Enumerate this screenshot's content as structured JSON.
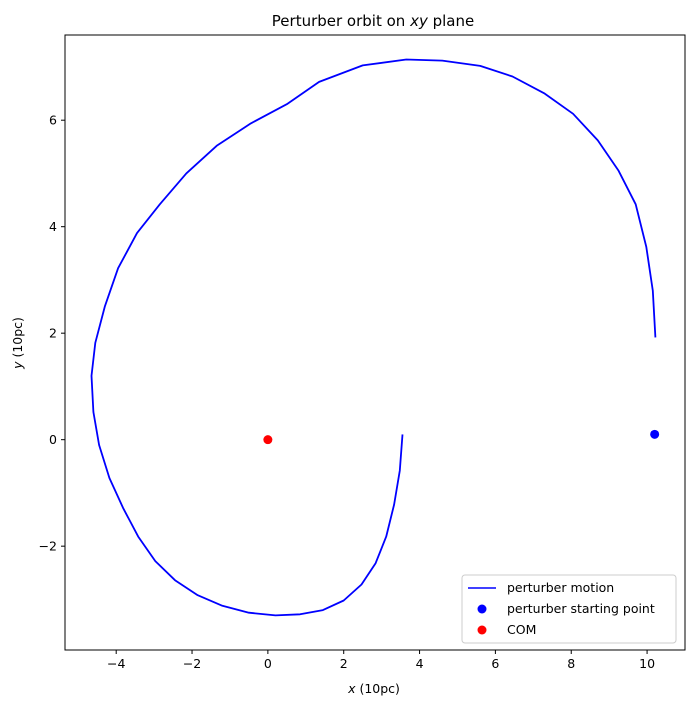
{
  "chart_data": {
    "type": "line",
    "title_prefix": "Perturber orbit on ",
    "title_math": "xy",
    "title_suffix": " plane",
    "xlabel_var": "x",
    "xlabel_unit": " (10pc)",
    "ylabel_var": "y",
    "ylabel_unit": " (10pc)",
    "xlim": [
      -5.35,
      11.0
    ],
    "ylim": [
      -3.95,
      7.6
    ],
    "xticks": [
      -4,
      -2,
      0,
      2,
      4,
      6,
      8,
      10
    ],
    "yticks": [
      -2,
      0,
      2,
      4,
      6
    ],
    "grid": false,
    "legend_location": "lower right",
    "series": [
      {
        "name": "perturber motion",
        "kind": "line",
        "color": "#0000ff",
        "x": [
          3.55,
          3.48,
          3.33,
          3.12,
          2.84,
          2.47,
          2.0,
          1.45,
          0.85,
          0.2,
          -0.5,
          -1.2,
          -1.85,
          -2.45,
          -2.97,
          -3.42,
          -3.82,
          -4.18,
          -4.45,
          -4.6,
          -4.65,
          -4.55,
          -4.3,
          -3.95,
          -3.45,
          -2.85,
          -2.15,
          -1.35,
          -0.45,
          0.5,
          1.35,
          2.5,
          3.65,
          4.6,
          5.6,
          6.45,
          7.3,
          8.05,
          8.7,
          9.25,
          9.7,
          9.98,
          10.15,
          10.22
        ],
        "y": [
          0.1,
          -0.58,
          -1.22,
          -1.82,
          -2.32,
          -2.72,
          -3.02,
          -3.2,
          -3.28,
          -3.3,
          -3.25,
          -3.12,
          -2.92,
          -2.64,
          -2.28,
          -1.82,
          -1.28,
          -0.72,
          -0.1,
          0.52,
          1.2,
          1.82,
          2.5,
          3.22,
          3.88,
          4.42,
          5.0,
          5.52,
          5.94,
          6.3,
          6.72,
          7.03,
          7.14,
          7.12,
          7.02,
          6.82,
          6.5,
          6.12,
          5.62,
          5.05,
          4.42,
          3.62,
          2.8,
          1.92
        ]
      },
      {
        "name": "perturber starting point",
        "kind": "scatter",
        "color": "#0000ff",
        "x": [
          10.2
        ],
        "y": [
          0.1
        ]
      },
      {
        "name": "COM",
        "kind": "scatter",
        "color": "#ff0000",
        "x": [
          0.0
        ],
        "y": [
          0.0
        ]
      }
    ]
  }
}
